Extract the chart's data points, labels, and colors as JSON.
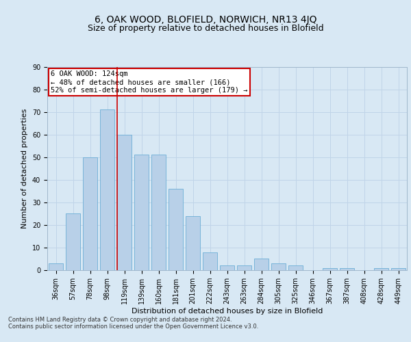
{
  "title1": "6, OAK WOOD, BLOFIELD, NORWICH, NR13 4JQ",
  "title2": "Size of property relative to detached houses in Blofield",
  "xlabel": "Distribution of detached houses by size in Blofield",
  "ylabel": "Number of detached properties",
  "bar_labels": [
    "36sqm",
    "57sqm",
    "78sqm",
    "98sqm",
    "119sqm",
    "139sqm",
    "160sqm",
    "181sqm",
    "201sqm",
    "222sqm",
    "243sqm",
    "263sqm",
    "284sqm",
    "305sqm",
    "325sqm",
    "346sqm",
    "367sqm",
    "387sqm",
    "408sqm",
    "428sqm",
    "449sqm"
  ],
  "bar_values": [
    3,
    25,
    50,
    71,
    60,
    51,
    51,
    36,
    24,
    8,
    2,
    2,
    5,
    3,
    2,
    0,
    1,
    1,
    0,
    1,
    1
  ],
  "bar_color": "#b8d0e8",
  "bar_edge_color": "#6baed6",
  "vertical_line_index": 4,
  "vertical_line_color": "#cc0000",
  "annotation_text": "6 OAK WOOD: 124sqm\n← 48% of detached houses are smaller (166)\n52% of semi-detached houses are larger (179) →",
  "annotation_box_color": "#ffffff",
  "annotation_box_edge": "#cc0000",
  "grid_color": "#c0d4e8",
  "background_color": "#d8e8f4",
  "plot_bg_color": "#d8e8f4",
  "ylim": [
    0,
    90
  ],
  "yticks": [
    0,
    10,
    20,
    30,
    40,
    50,
    60,
    70,
    80,
    90
  ],
  "footer_text": "Contains HM Land Registry data © Crown copyright and database right 2024.\nContains public sector information licensed under the Open Government Licence v3.0.",
  "title1_fontsize": 10,
  "title2_fontsize": 9,
  "axis_fontsize": 8,
  "tick_fontsize": 7,
  "annotation_fontsize": 7.5
}
